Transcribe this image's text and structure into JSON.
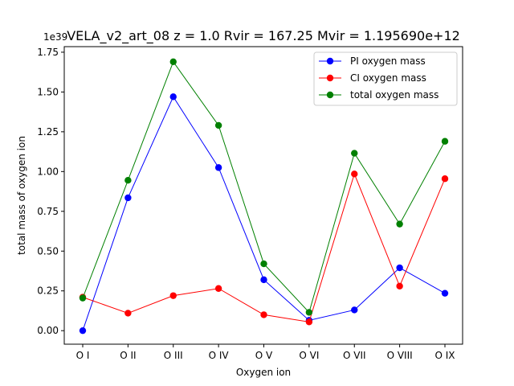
{
  "chart_data": {
    "type": "line",
    "title": "VELA_v2_art_08 z = 1.0 Rvir = 167.25 Mvir = 1.195690e+12",
    "xlabel": "Oxygen ion",
    "ylabel": "total mass of oxygen ion",
    "y_offset_label": "1e39",
    "categories": [
      "O I",
      "O II",
      "O III",
      "O IV",
      "O V",
      "O VI",
      "O VII",
      "O VIII",
      "O IX"
    ],
    "ylim": [
      -0.085,
      1.785
    ],
    "yticks": [
      0.0,
      0.25,
      0.5,
      0.75,
      1.0,
      1.25,
      1.5,
      1.75
    ],
    "ytick_labels": [
      "0.00",
      "0.25",
      "0.50",
      "0.75",
      "1.00",
      "1.25",
      "1.50",
      "1.75"
    ],
    "grid": false,
    "legend_position": "top-right",
    "series": [
      {
        "name": "PI oxygen mass",
        "color": "#0000ff",
        "values": [
          0.0,
          0.835,
          1.47,
          1.025,
          0.32,
          0.065,
          0.13,
          0.395,
          0.235
        ]
      },
      {
        "name": "CI oxygen mass",
        "color": "#ff0000",
        "values": [
          0.21,
          0.11,
          0.22,
          0.265,
          0.1,
          0.055,
          0.985,
          0.28,
          0.955
        ]
      },
      {
        "name": "total oxygen mass",
        "color": "#008000",
        "values": [
          0.205,
          0.945,
          1.69,
          1.29,
          0.42,
          0.115,
          1.115,
          0.67,
          1.19
        ]
      }
    ]
  }
}
